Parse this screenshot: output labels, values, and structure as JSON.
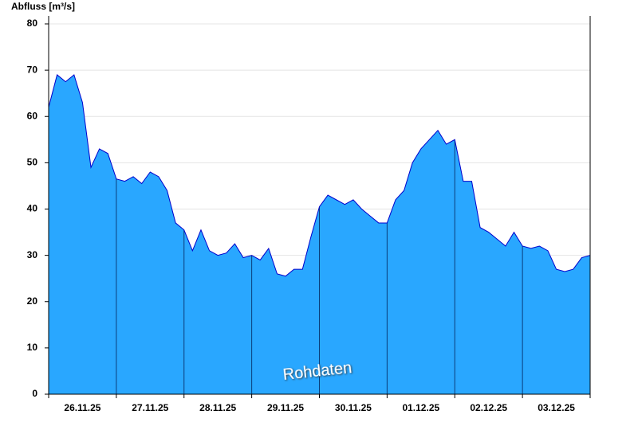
{
  "chart_data": {
    "type": "area",
    "y_label": "Abfluss [m³/s]",
    "annotation": "Rohdaten",
    "x": [
      0,
      0.125,
      0.25,
      0.375,
      0.5,
      0.625,
      0.75,
      0.875,
      1,
      1.125,
      1.25,
      1.375,
      1.5,
      1.625,
      1.75,
      1.875,
      2,
      2.125,
      2.25,
      2.375,
      2.5,
      2.625,
      2.75,
      2.875,
      3,
      3.125,
      3.25,
      3.375,
      3.5,
      3.625,
      3.75,
      3.875,
      4,
      4.125,
      4.25,
      4.375,
      4.5,
      4.625,
      4.75,
      4.875,
      5,
      5.125,
      5.25,
      5.375,
      5.5,
      5.625,
      5.75,
      5.875,
      6,
      6.125,
      6.25,
      6.375,
      6.5,
      6.625,
      6.75,
      6.875,
      7,
      7.125,
      7.25,
      7.375,
      7.5,
      7.625,
      7.75,
      7.875,
      8
    ],
    "series": [
      {
        "color": "#29a7ff",
        "line_color": "#0000cc",
        "values": [
          62,
          69,
          67.5,
          69,
          63,
          49,
          53,
          52,
          46.5,
          46,
          47,
          45.5,
          48,
          47,
          44,
          37,
          35.5,
          31,
          35.5,
          31,
          30,
          30.5,
          32.5,
          29.5,
          30,
          29,
          31.5,
          26,
          25.5,
          27,
          27,
          34,
          40.5,
          43,
          42,
          41,
          42,
          40,
          38.5,
          37,
          37,
          42,
          44,
          50,
          53,
          55,
          57,
          54,
          55,
          46,
          46,
          36,
          35,
          33.5,
          32,
          35,
          32,
          31.5,
          32,
          31,
          27,
          26.5,
          27,
          29.5,
          30
        ]
      }
    ],
    "xlim": [
      0,
      8
    ],
    "xticks": [
      {
        "value": 0,
        "label": "26.11.25"
      },
      {
        "value": 1,
        "label": "27.11.25"
      },
      {
        "value": 2,
        "label": "28.11.25"
      },
      {
        "value": 3,
        "label": "29.11.25"
      },
      {
        "value": 4,
        "label": "30.11.25"
      },
      {
        "value": 5,
        "label": "01.12.25"
      },
      {
        "value": 6,
        "label": "02.12.25"
      },
      {
        "value": 7,
        "label": "03.12.25"
      }
    ],
    "ylim": [
      0,
      80
    ],
    "yticks": [
      0,
      10,
      20,
      30,
      40,
      50,
      60,
      70,
      80
    ],
    "grid": true
  }
}
